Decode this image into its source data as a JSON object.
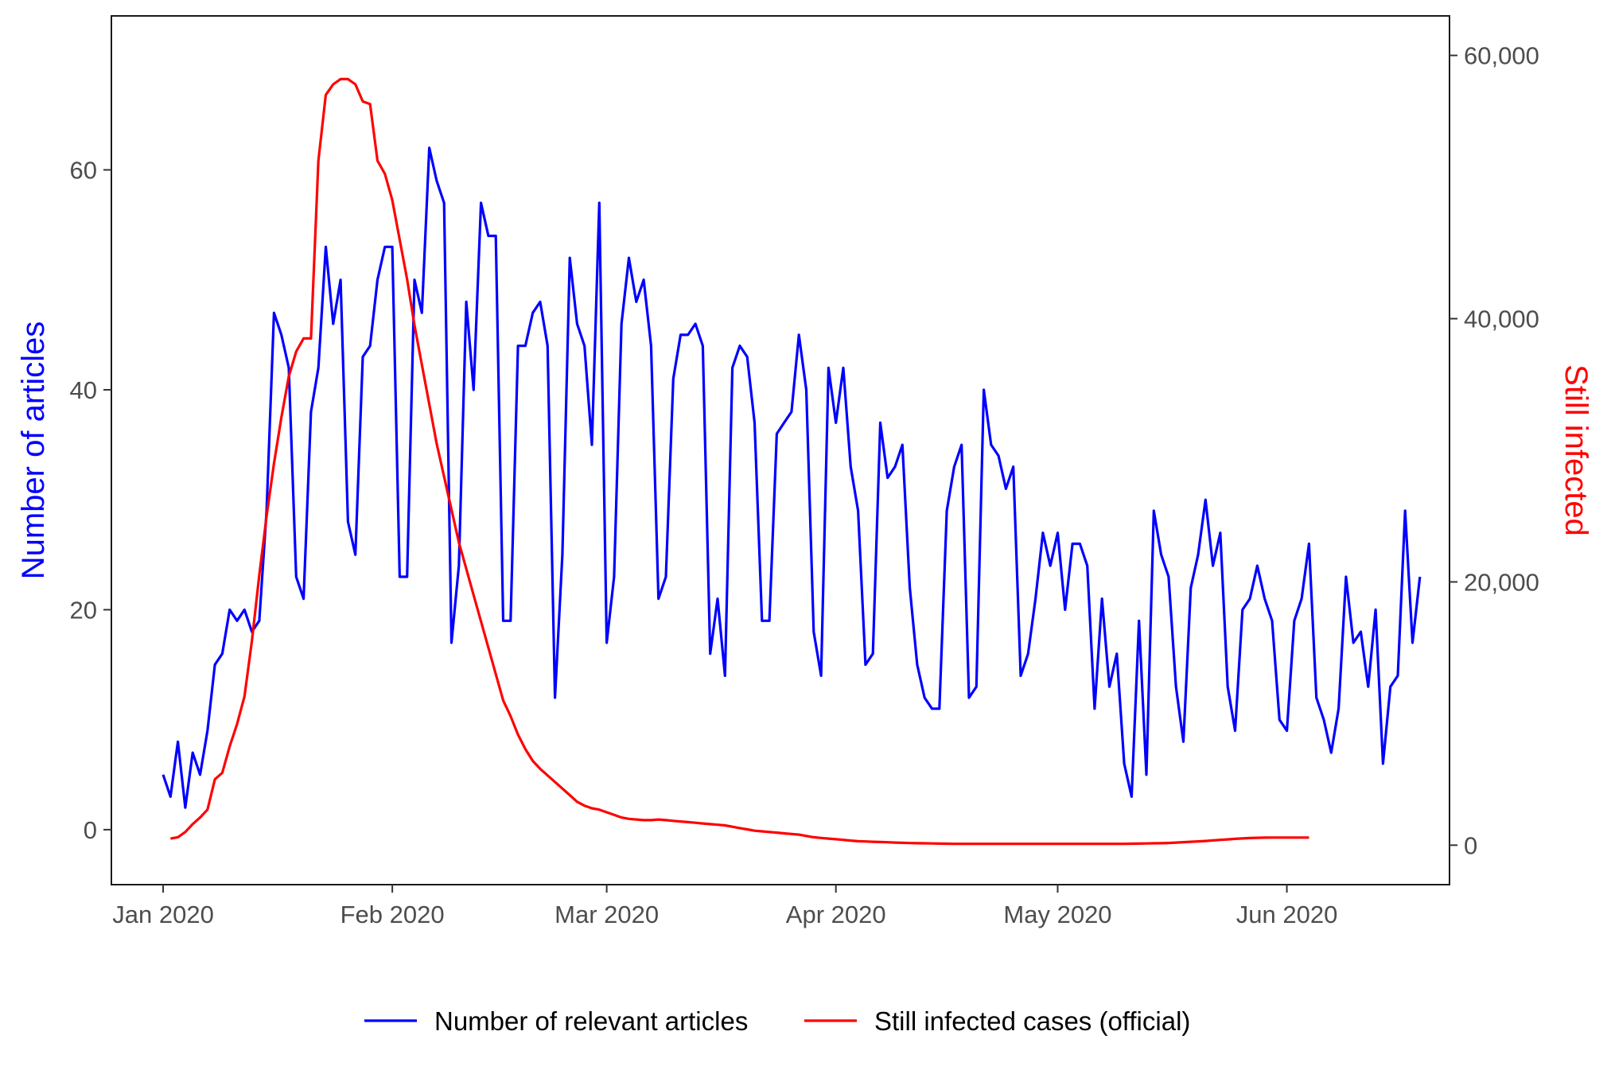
{
  "chart_data": {
    "type": "line",
    "title": "",
    "xlabel": "",
    "x_tick_labels": [
      "Jan 2020",
      "Feb 2020",
      "Mar 2020",
      "Apr 2020",
      "May 2020",
      "Jun 2020"
    ],
    "x_tick_dates": [
      "2020-01-01",
      "2020-02-01",
      "2020-03-01",
      "2020-04-01",
      "2020-05-01",
      "2020-06-01"
    ],
    "xlim": [
      "2019-12-25",
      "2020-06-23"
    ],
    "y_left": {
      "label": "Number of articles",
      "color": "#0000ff",
      "ylim": [
        -5,
        74
      ],
      "ticks": [
        0,
        20,
        40,
        60
      ],
      "tick_labels": [
        "0",
        "20",
        "40",
        "60"
      ]
    },
    "y_right": {
      "label": "Still infected",
      "color": "#ff0000",
      "ylim": [
        -3000,
        63000
      ],
      "ticks": [
        0,
        20000,
        40000,
        60000
      ],
      "tick_labels": [
        "0",
        "20,000",
        "40,000",
        "60,000"
      ]
    },
    "grid": false,
    "legend_position": "bottom",
    "series": [
      {
        "name": "Number of relevant articles",
        "axis": "left",
        "color": "#0000ff",
        "start_date": "2020-01-01",
        "values": [
          5,
          3,
          8,
          2,
          7,
          5,
          9,
          15,
          16,
          20,
          19,
          20,
          18,
          19,
          29,
          47,
          45,
          42,
          23,
          21,
          38,
          42,
          53,
          46,
          50,
          28,
          25,
          43,
          44,
          50,
          53,
          53,
          23,
          23,
          50,
          47,
          62,
          59,
          57,
          17,
          24,
          48,
          40,
          57,
          54,
          54,
          19,
          19,
          44,
          44,
          47,
          48,
          44,
          12,
          25,
          52,
          46,
          44,
          35,
          57,
          17,
          23,
          46,
          52,
          48,
          50,
          44,
          21,
          23,
          41,
          45,
          45,
          46,
          44,
          16,
          21,
          14,
          42,
          44,
          43,
          37,
          19,
          19,
          36,
          37,
          38,
          45,
          40,
          18,
          14,
          42,
          37,
          42,
          33,
          29,
          15,
          16,
          37,
          32,
          33,
          35,
          22,
          15,
          12,
          11,
          11,
          29,
          33,
          35,
          12,
          13,
          40,
          35,
          34,
          31,
          33,
          14,
          16,
          21,
          27,
          24,
          27,
          20,
          26,
          26,
          24,
          11,
          21,
          13,
          16,
          6,
          3,
          19,
          5,
          29,
          25,
          23,
          13,
          8,
          22,
          25,
          30,
          24,
          27,
          13,
          9,
          20,
          21,
          24,
          21,
          19,
          10,
          9,
          19,
          21,
          26,
          12,
          10,
          7,
          11,
          23,
          17,
          18,
          13,
          20,
          6,
          13,
          14,
          29,
          17,
          23
        ]
      },
      {
        "name": "Still infected cases (official)",
        "axis": "right",
        "color": "#ff0000",
        "start_date": "2020-01-02",
        "values": [
          500,
          600,
          1000,
          1600,
          2100,
          2700,
          5000,
          5500,
          7500,
          9200,
          11300,
          15500,
          20500,
          25000,
          29000,
          32500,
          35600,
          37500,
          38500,
          38500,
          52000,
          57000,
          57800,
          58200,
          58200,
          57800,
          56500,
          56300,
          52000,
          51000,
          49000,
          46000,
          43000,
          39500,
          36500,
          33500,
          30500,
          28000,
          25500,
          23000,
          21000,
          19000,
          17000,
          15000,
          13000,
          11000,
          9800,
          8400,
          7300,
          6400,
          5800,
          5300,
          4800,
          4300,
          3800,
          3300,
          3000,
          2800,
          2700,
          2500,
          2300,
          2100,
          2000,
          1950,
          1900,
          1900,
          1950,
          1900,
          1850,
          1800,
          1750,
          1700,
          1650,
          1600,
          1550,
          1500,
          1400,
          1300,
          1200,
          1100,
          1050,
          1000,
          950,
          900,
          850,
          800,
          700,
          600,
          550,
          500,
          450,
          400,
          350,
          300,
          280,
          260,
          240,
          220,
          200,
          180,
          160,
          150,
          140,
          130,
          120,
          110,
          100,
          100,
          100,
          100,
          100,
          100,
          100,
          100,
          100,
          100,
          100,
          100,
          100,
          100,
          100,
          100,
          100,
          100,
          100,
          100,
          100,
          100,
          100,
          100,
          110,
          120,
          130,
          140,
          150,
          170,
          200,
          230,
          260,
          290,
          320,
          360,
          400,
          440,
          480,
          510,
          540,
          560,
          570,
          580,
          580,
          580,
          580,
          580,
          580
        ]
      }
    ]
  }
}
